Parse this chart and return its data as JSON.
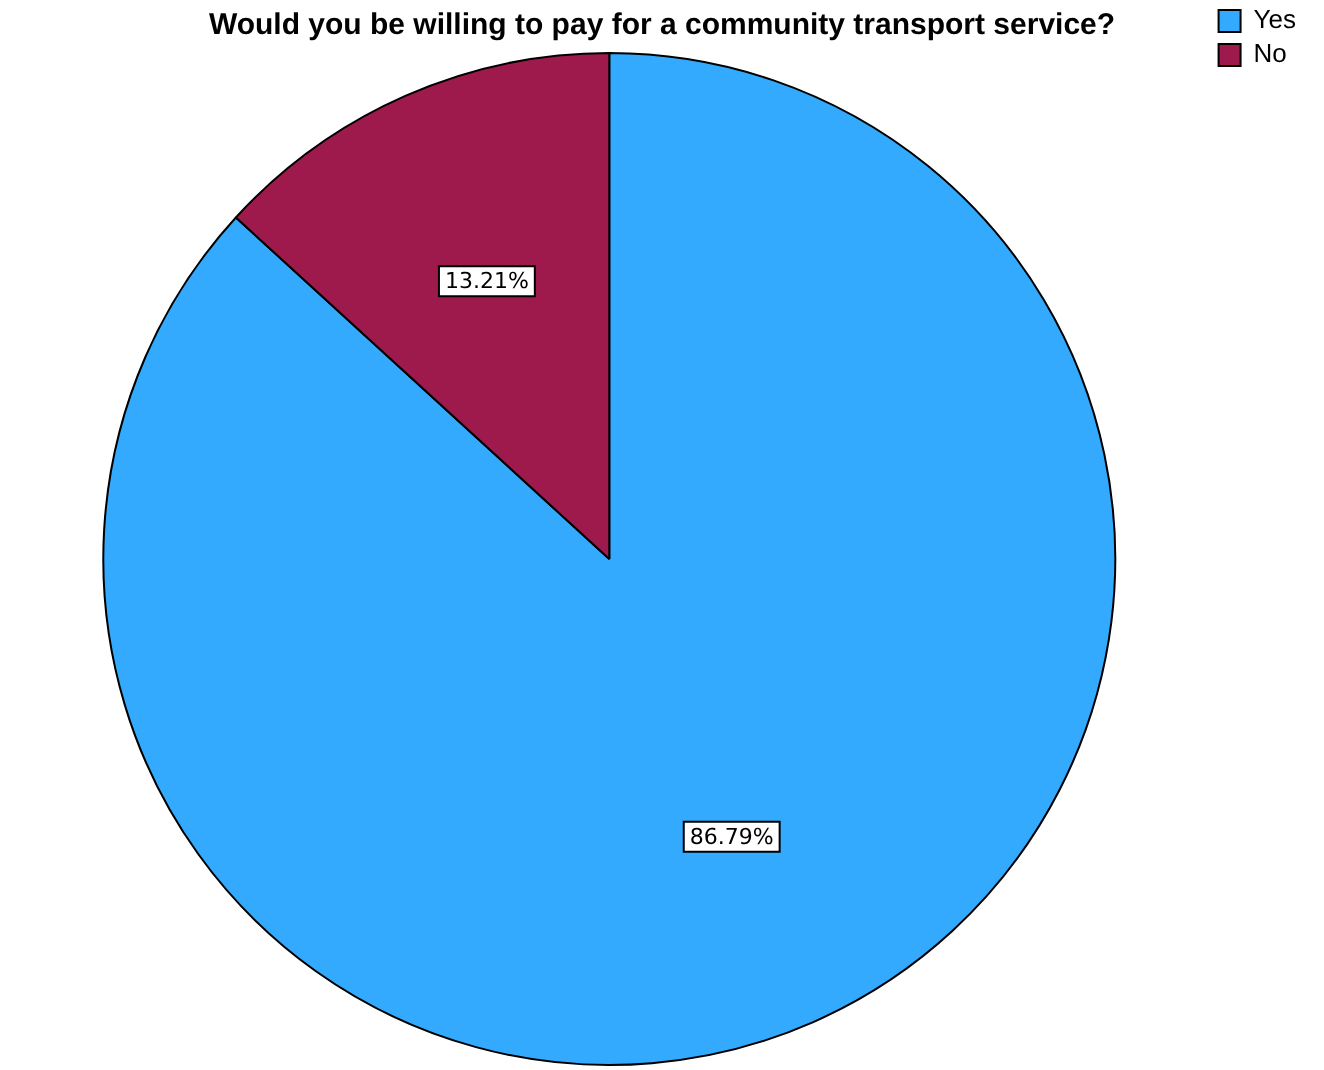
{
  "chart_data": {
    "type": "pie",
    "title": "Would you be willing to pay for a community transport service?",
    "categories": [
      "Yes",
      "No"
    ],
    "values": [
      86.79,
      13.21
    ],
    "colors": [
      "#33aafd",
      "#9e1a4c"
    ],
    "value_labels": [
      "86.79%",
      "13.21%"
    ],
    "legend": "top right"
  }
}
